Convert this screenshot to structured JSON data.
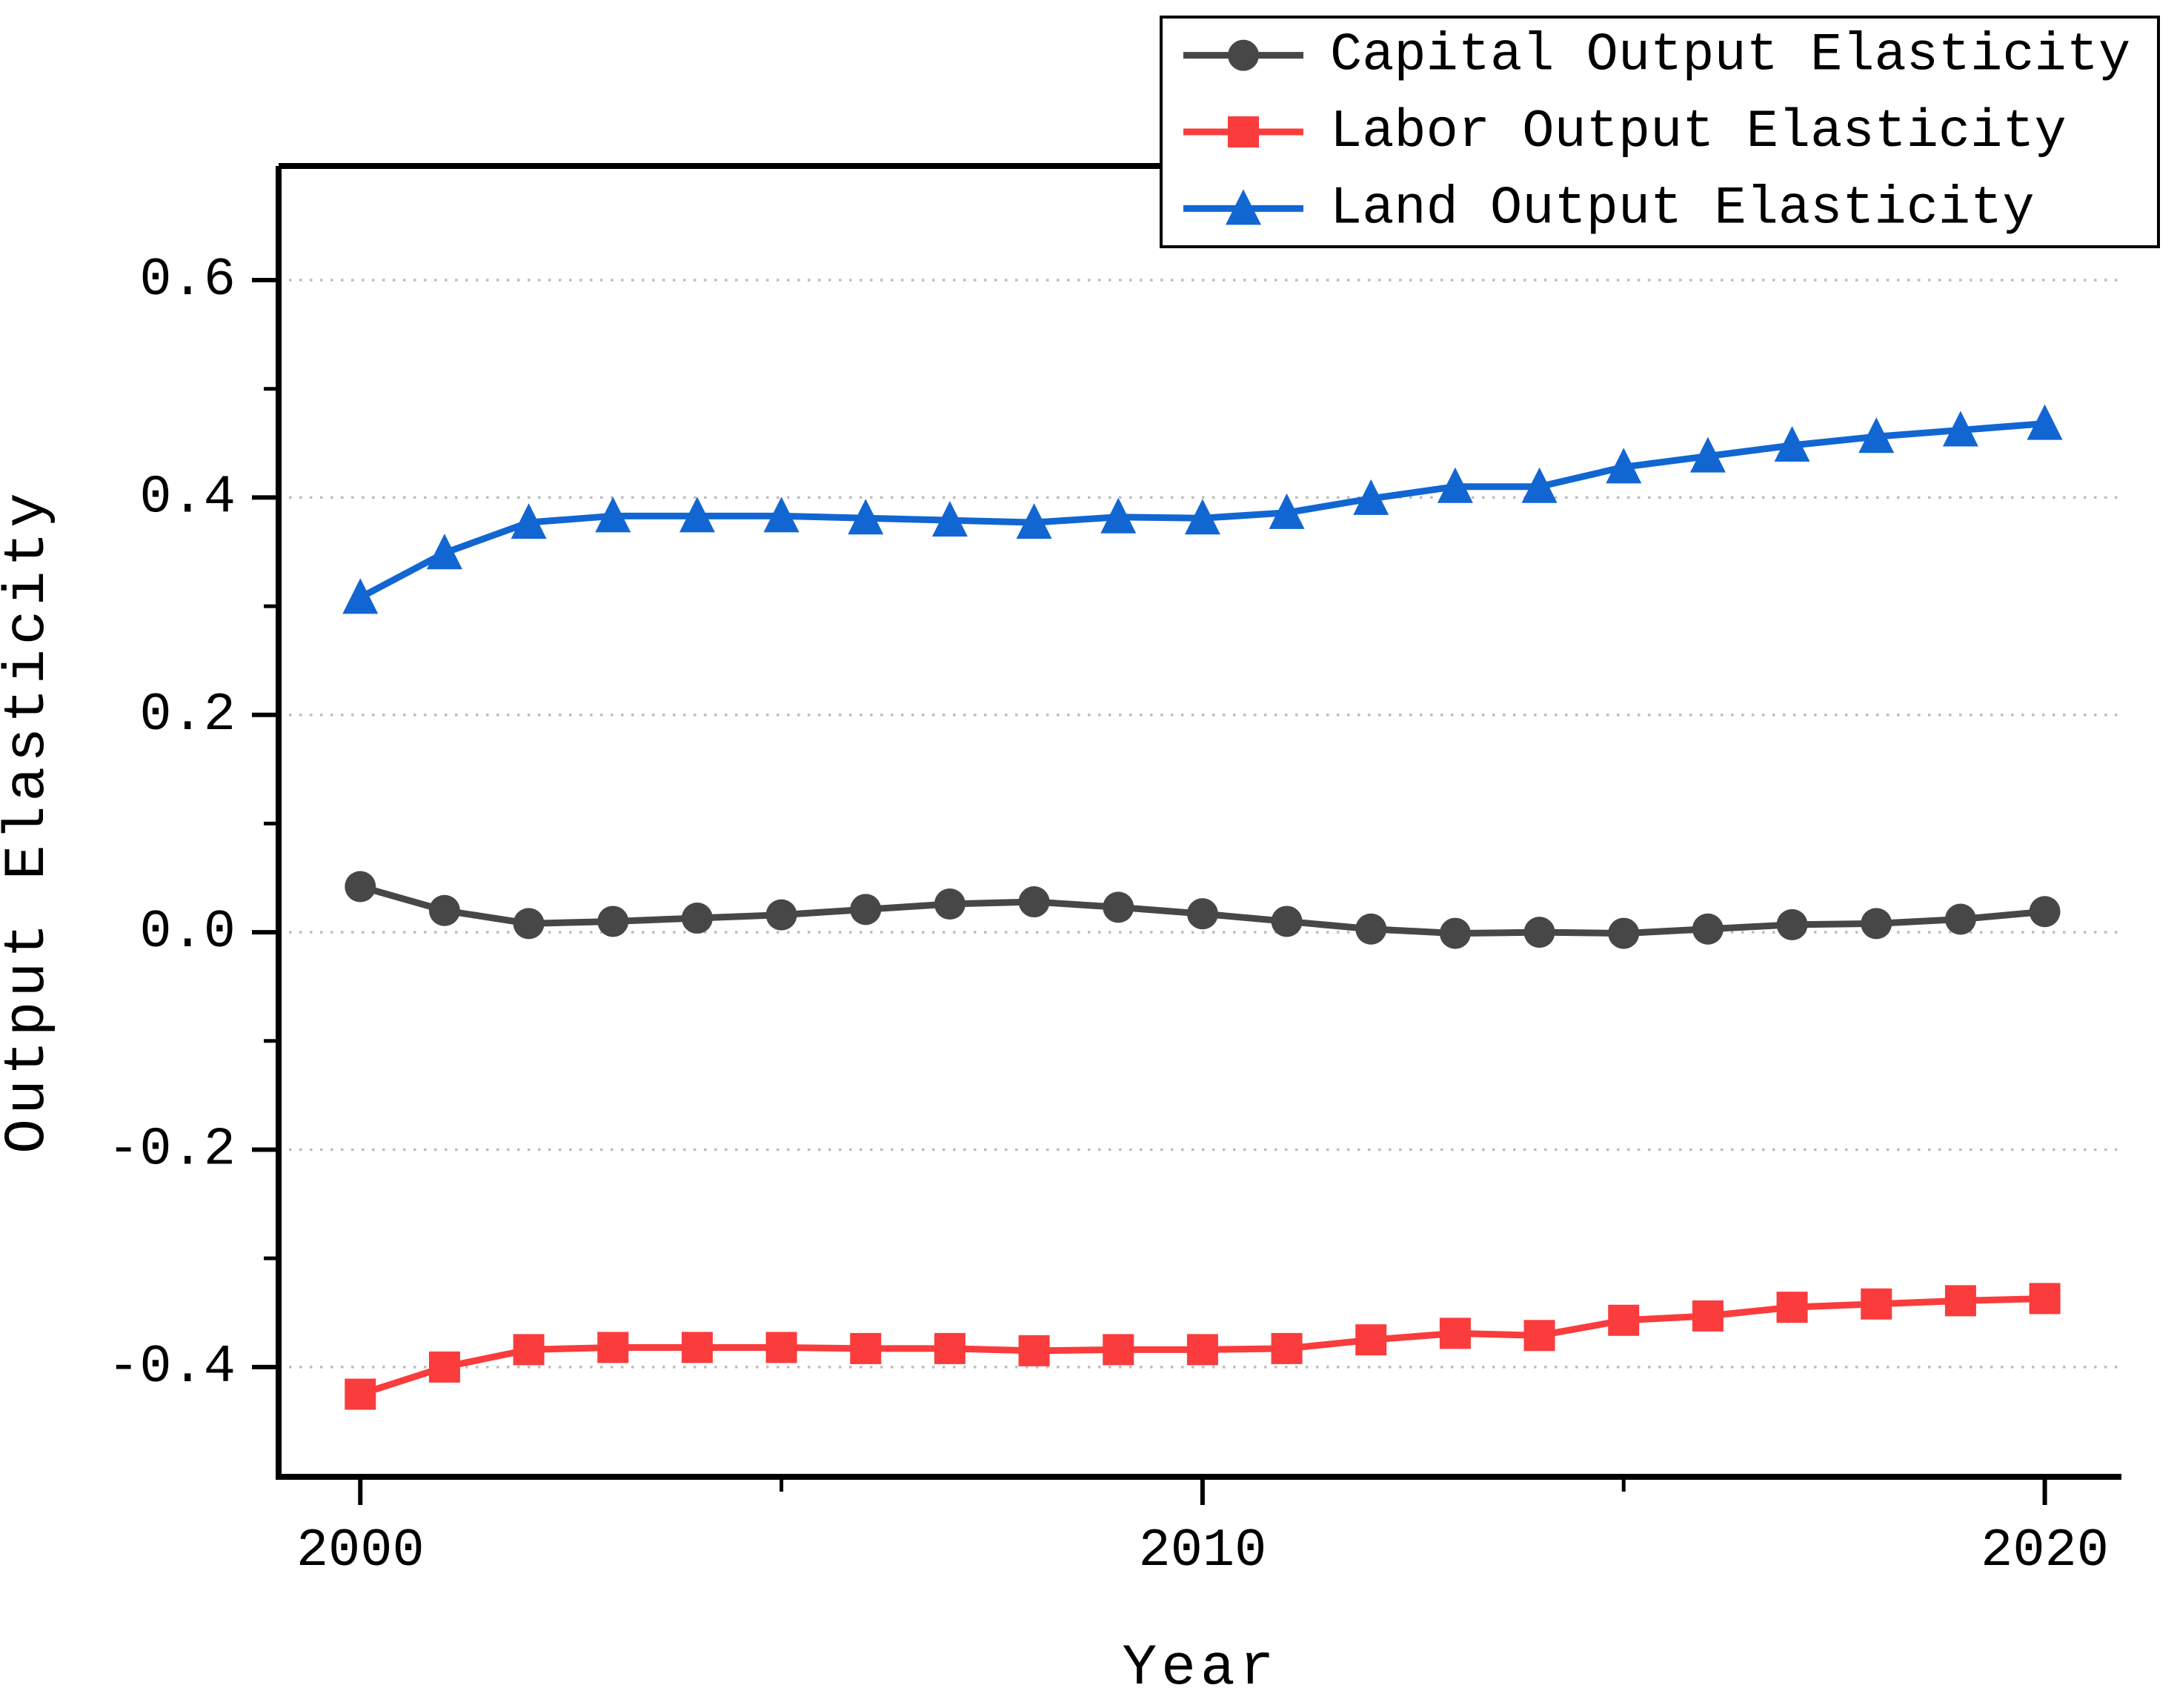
{
  "chart_data": {
    "type": "line",
    "title": "",
    "xlabel": "Year",
    "ylabel": "Output Elasticity",
    "x": [
      2000,
      2001,
      2002,
      2003,
      2004,
      2005,
      2006,
      2007,
      2008,
      2009,
      2010,
      2011,
      2012,
      2013,
      2014,
      2015,
      2016,
      2017,
      2018,
      2019,
      2020
    ],
    "series": [
      {
        "name": "Capital Output Elasticity",
        "marker": "circle",
        "color": "#474747",
        "values": [
          0.042,
          0.02,
          0.008,
          0.01,
          0.013,
          0.016,
          0.021,
          0.026,
          0.028,
          0.023,
          0.017,
          0.01,
          0.003,
          -0.001,
          0.0,
          -0.001,
          0.003,
          0.007,
          0.008,
          0.012,
          0.019
        ]
      },
      {
        "name": "Labor Output Elasticity",
        "marker": "square",
        "color": "#FA3C3C",
        "values": [
          -0.425,
          -0.4,
          -0.384,
          -0.382,
          -0.382,
          -0.382,
          -0.383,
          -0.383,
          -0.385,
          -0.384,
          -0.384,
          -0.383,
          -0.375,
          -0.369,
          -0.371,
          -0.357,
          -0.353,
          -0.345,
          -0.342,
          -0.339,
          -0.337
        ]
      },
      {
        "name": "Land Output Elasticity",
        "marker": "triangle",
        "color": "#1166D2",
        "values": [
          0.308,
          0.349,
          0.377,
          0.383,
          0.383,
          0.383,
          0.381,
          0.379,
          0.377,
          0.382,
          0.381,
          0.386,
          0.399,
          0.41,
          0.41,
          0.428,
          0.438,
          0.448,
          0.456,
          0.462,
          0.468
        ]
      }
    ],
    "xlim": [
      1999.03,
      2020.91
    ],
    "ylim": [
      -0.501,
      0.705
    ],
    "x_major_ticks": [
      2000,
      2010,
      2020
    ],
    "x_minor_ticks": [
      2005,
      2015
    ],
    "y_major_ticks": [
      0.6,
      0.4,
      0.2,
      0.0,
      -0.2,
      -0.4
    ],
    "y_minor_ticks": [
      0.5,
      0.3,
      0.1,
      -0.1,
      -0.3
    ],
    "grid": "horizontal dotted lines at y major ticks",
    "legend_position": "upper right, overlapping plot top edge",
    "colors": {
      "capital": "#474747",
      "labor": "#FA3C3C",
      "land": "#1166D2",
      "gridline": "#bdbdbd",
      "axis": "#000000",
      "background": "#ffffff"
    }
  }
}
